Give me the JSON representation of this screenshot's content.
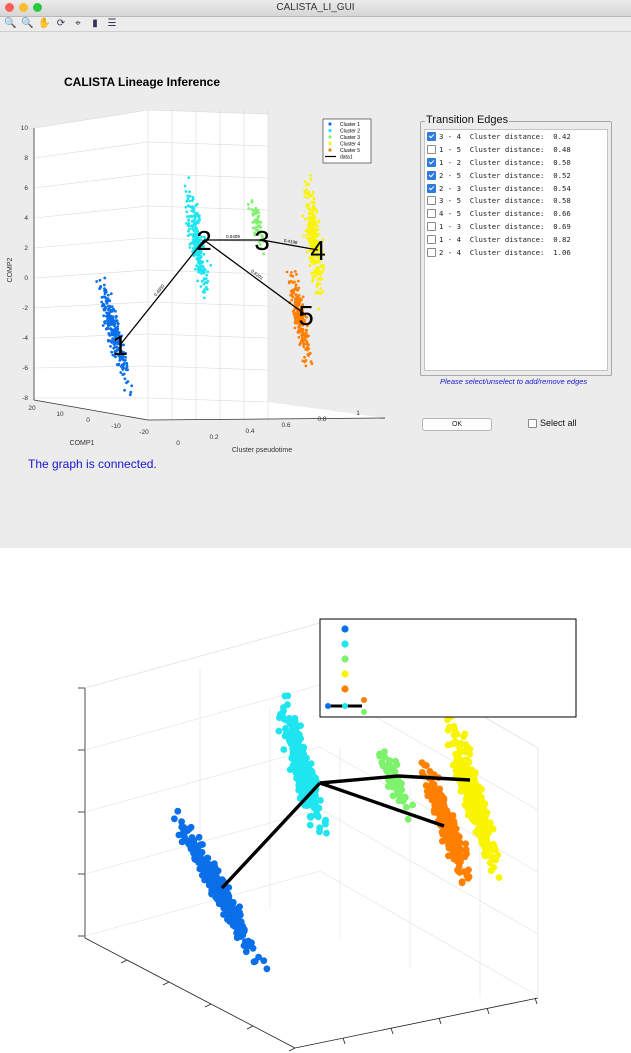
{
  "window": {
    "title": "CALISTA_LI_GUI",
    "lights": {
      "close": "#fc5f57",
      "minimize": "#fdbc2e",
      "zoom": "#28c840"
    }
  },
  "toolbar": {
    "items": [
      {
        "icon": "zoom-in-icon",
        "glyph": "🔍"
      },
      {
        "icon": "zoom-out-icon",
        "glyph": "🔍"
      },
      {
        "icon": "pan-icon",
        "glyph": "✋"
      },
      {
        "icon": "rotate-3d-icon",
        "glyph": "⟳"
      },
      {
        "icon": "data-cursor-icon",
        "glyph": "⌖"
      },
      {
        "icon": "colorbar-icon",
        "glyph": "▮"
      },
      {
        "icon": "legend-icon",
        "glyph": "☰"
      }
    ]
  },
  "app_title": "CALISTA Lineage Inference",
  "plot": {
    "zlabel": "COMP2",
    "xlabel": "COMP1",
    "ylabel": "Cluster pseudotime",
    "z_ticks": [
      "10",
      "8",
      "6",
      "4",
      "2",
      "0",
      "-2",
      "-4",
      "-6",
      "-8"
    ],
    "x_ticks": [
      "20",
      "10",
      "0",
      "-10",
      "-20"
    ],
    "y_ticks": [
      "0",
      "0.2",
      "0.4",
      "0.6",
      "0.8",
      "1"
    ],
    "legend": [
      {
        "label": "Cluster 1",
        "color": "#0a6fe8"
      },
      {
        "label": "Cluster 2",
        "color": "#1ee5f0"
      },
      {
        "label": "Cluster 3",
        "color": "#7ef26c"
      },
      {
        "label": "Cluster 4",
        "color": "#f9f400"
      },
      {
        "label": "Cluster 5",
        "color": "#ff7f00"
      },
      {
        "label": "data1",
        "color": "#000000"
      }
    ],
    "node_labels": [
      "1",
      "2",
      "3",
      "4",
      "5"
    ],
    "edge_labels": [
      "0.4950",
      "0.5409",
      "0.4198",
      "0.5201"
    ]
  },
  "status": "The graph is connected.",
  "edges_panel": {
    "title": "Transition Edges",
    "rows": [
      {
        "label": "3 - 4  Cluster distance:  0.42",
        "checked": true
      },
      {
        "label": "1 - 5  Cluster distance:  0.48",
        "checked": false
      },
      {
        "label": "1 - 2  Cluster distance:  0.50",
        "checked": true
      },
      {
        "label": "2 - 5  Cluster distance:  0.52",
        "checked": true
      },
      {
        "label": "2 - 3  Cluster distance:  0.54",
        "checked": true
      },
      {
        "label": "3 - 5  Cluster distance:  0.58",
        "checked": false
      },
      {
        "label": "4 - 5  Cluster distance:  0.66",
        "checked": false
      },
      {
        "label": "1 - 3  Cluster distance:  0.69",
        "checked": false
      },
      {
        "label": "1 - 4  Cluster distance:  0.82",
        "checked": false
      },
      {
        "label": "2 - 4  Cluster distance:  1.06",
        "checked": false
      }
    ],
    "hint": "Please select/unselect to add/remove edges"
  },
  "ok_button": "OK",
  "select_all": {
    "label": "Select all",
    "checked": false
  }
}
